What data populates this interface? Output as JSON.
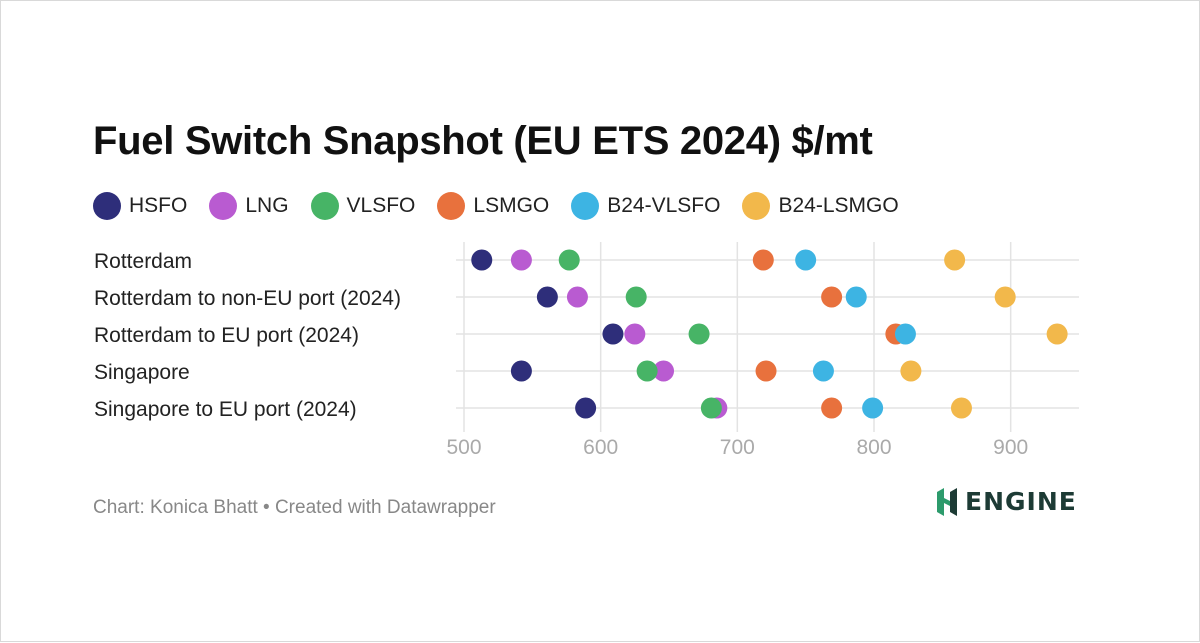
{
  "title": "Fuel Switch Snapshot (EU ETS 2024) $/mt",
  "footer": "Chart: Konica Bhatt • Created with Datawrapper",
  "logo_text": "ENGINE",
  "colors": {
    "HSFO": "#2e2e7a",
    "LNG": "#b95bd1",
    "VLSFO": "#47b466",
    "LSMGO": "#e8713d",
    "B24-VLSFO": "#3db4e3",
    "B24-LSMGO": "#f2b84b",
    "logo_accent": "#2d9b6c",
    "logo_dark": "#1d3b35"
  },
  "chart_data": {
    "type": "scatter",
    "categories": [
      "Rotterdam",
      "Rotterdam to non-EU port (2024)",
      "Rotterdam to EU port (2024)",
      "Singapore",
      "Singapore to EU port (2024)"
    ],
    "xlim": [
      500,
      950
    ],
    "xticks": [
      500,
      600,
      700,
      800,
      900
    ],
    "grid": true,
    "legend_position": "top-left",
    "series": [
      {
        "name": "HSFO",
        "color": "#2e2e7a",
        "values": [
          513,
          561,
          609,
          542,
          589
        ]
      },
      {
        "name": "LNG",
        "color": "#b95bd1",
        "values": [
          542,
          583,
          625,
          646,
          685
        ]
      },
      {
        "name": "VLSFO",
        "color": "#47b466",
        "values": [
          577,
          626,
          672,
          634,
          681
        ]
      },
      {
        "name": "LSMGO",
        "color": "#e8713d",
        "values": [
          719,
          769,
          816,
          721,
          769
        ]
      },
      {
        "name": "B24-VLSFO",
        "color": "#3db4e3",
        "values": [
          750,
          787,
          823,
          763,
          799
        ]
      },
      {
        "name": "B24-LSMGO",
        "color": "#f2b84b",
        "values": [
          859,
          896,
          934,
          827,
          864
        ]
      }
    ]
  }
}
